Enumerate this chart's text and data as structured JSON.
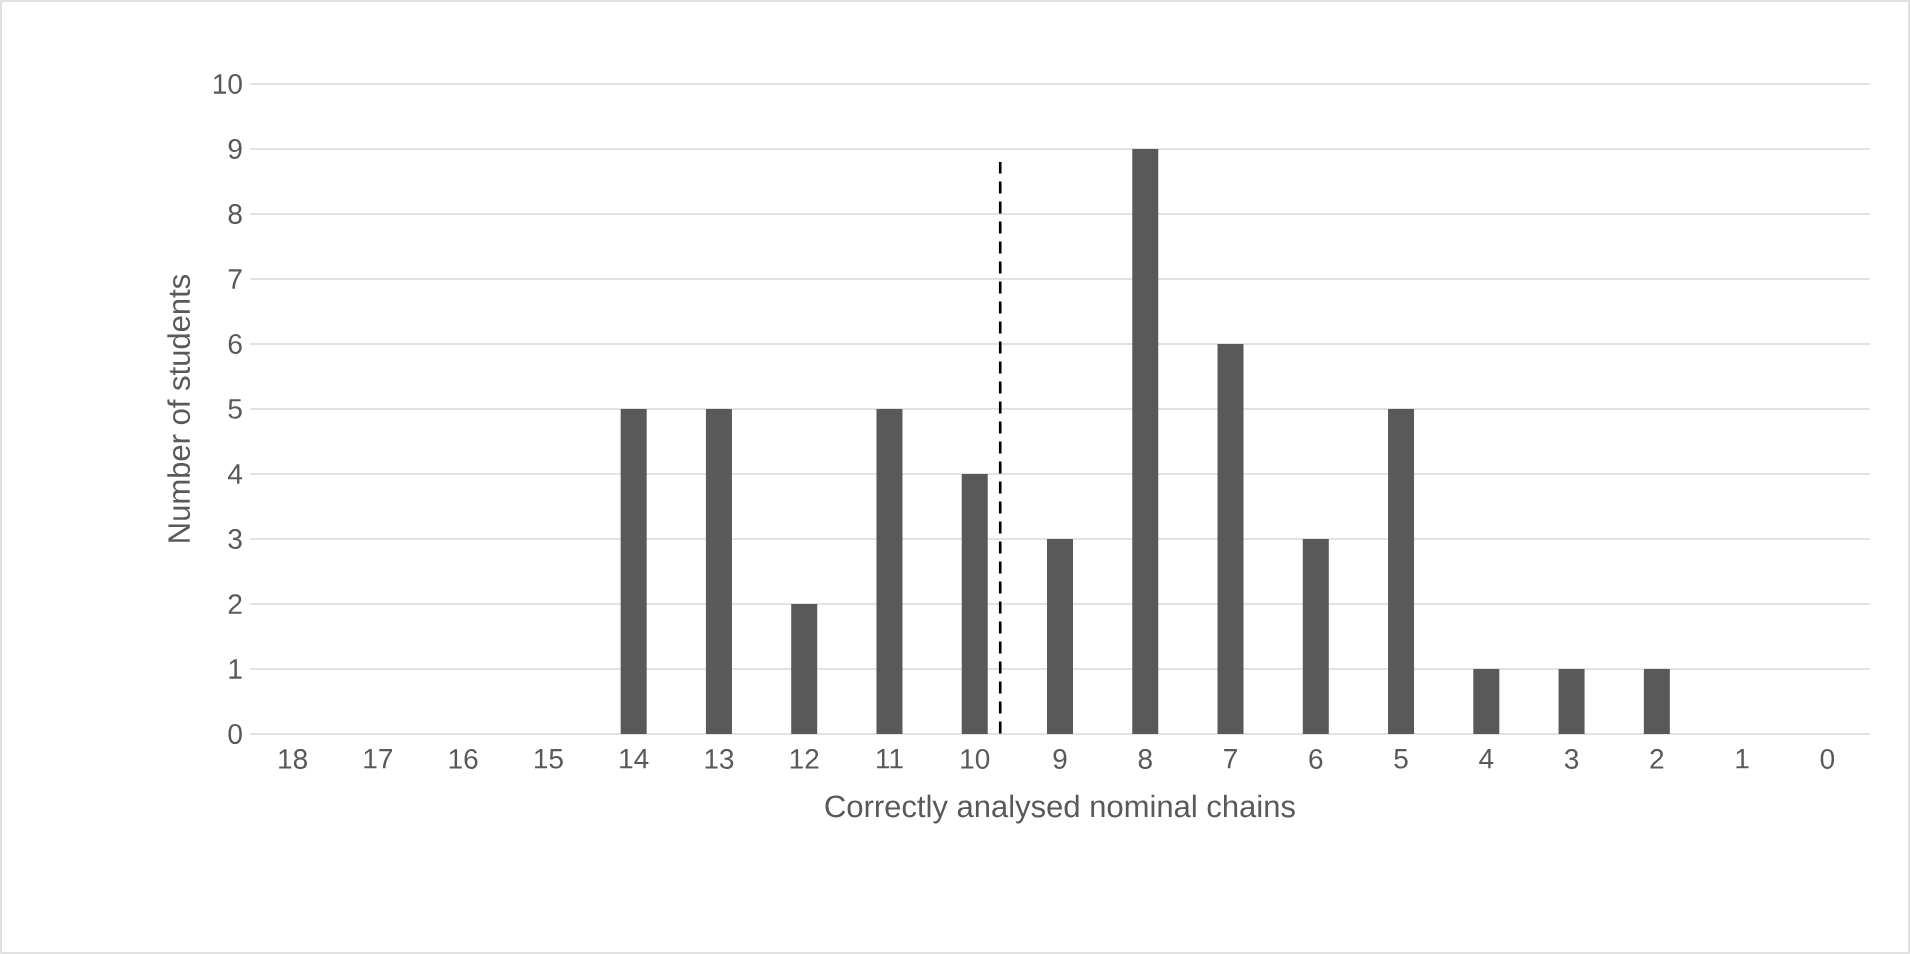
{
  "chart_data": {
    "type": "bar",
    "xlabel": "Correctly analysed nominal chains",
    "ylabel": "Number of students",
    "x": [
      18,
      17,
      16,
      15,
      14,
      13,
      12,
      11,
      10,
      9,
      8,
      7,
      6,
      5,
      4,
      3,
      2,
      1,
      0
    ],
    "values": [
      0,
      0,
      0,
      0,
      5,
      5,
      2,
      5,
      4,
      3,
      9,
      6,
      3,
      5,
      1,
      1,
      1,
      0,
      0
    ],
    "color": "#595959",
    "xlim": [
      18.5,
      -0.5
    ],
    "xticks": [
      18,
      17,
      16,
      15,
      14,
      13,
      12,
      11,
      10,
      9,
      8,
      7,
      6,
      5,
      4,
      3,
      2,
      1,
      0
    ],
    "ylim": [
      0,
      10
    ],
    "yticks": [
      0,
      1,
      2,
      3,
      4,
      5,
      6,
      7,
      8,
      9,
      10
    ],
    "grid": "y",
    "ref_lines": [
      {
        "axis": "x",
        "value": 9.7,
        "color": "#000000",
        "line_style": "dashed"
      }
    ]
  }
}
